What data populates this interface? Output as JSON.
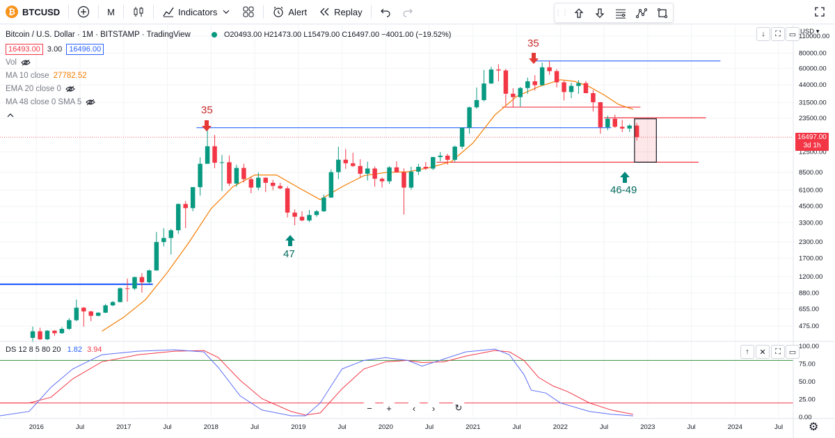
{
  "toolbar": {
    "symbol": "BTCUSD",
    "interval": "M",
    "indicators_label": "Indicators",
    "alert_label": "Alert",
    "replay_label": "Replay"
  },
  "legend": {
    "title": "Bitcoin / U.S. Dollar · 1M · BITSTAMP · TradingView",
    "ohlc": "O20493.00 H21473.00 L15479.00 C16497.00 −4001.00 (−19.52%)",
    "bid": "16493.00",
    "spread": "3.00",
    "ask": "16496.00",
    "vol_label": "Vol",
    "ma10_label": "MA 10 close",
    "ma10_value": "27782.52",
    "ema20_label": "EMA 20 close 0",
    "ma48_label": "MA 48 close 0 SMA 5",
    "indicator_label": "DS 12 8 5 80 20",
    "indicator_v1": "1.82",
    "indicator_v2": "3.94"
  },
  "price_axis": {
    "currency": "USD",
    "ticks": [
      "110000.00",
      "80000.00",
      "60000.00",
      "44000.00",
      "31500.00",
      "23500.00",
      "12500.00",
      "8500.00",
      "6100.00",
      "4500.00",
      "3300.00",
      "2300.00",
      "1700.00",
      "1200.00",
      "880.00",
      "655.00",
      "475.00"
    ],
    "current_price": "16497.00",
    "countdown": "3d 1h"
  },
  "osc_axis": {
    "ticks": [
      "100.00",
      "75.00",
      "50.00",
      "25.00",
      "0.00"
    ]
  },
  "time_axis": {
    "labels": [
      "Jul",
      "2016",
      "Jul",
      "2017",
      "Jul",
      "2018",
      "Jul",
      "2019",
      "Jul",
      "2020",
      "Jul",
      "2021",
      "Jul",
      "2022",
      "Jul",
      "2023",
      "Jul",
      "2024",
      "Jul"
    ]
  },
  "annotations": {
    "top1": "35",
    "top2": "35",
    "bottom1": "47",
    "bottom2": "46-49"
  },
  "colors": {
    "up": "#089981",
    "down": "#f23645",
    "ma": "#f57c00",
    "hline_blue": "#2962ff",
    "hline_red": "#f23645",
    "osc_blue": "#5b6df5",
    "osc_red": "#f23645",
    "osc_green": "#388e3c"
  },
  "chart_data": {
    "type": "candlestick",
    "title": "Bitcoin / U.S. Dollar · 1M · BITSTAMP · TradingView",
    "y_scale": "log",
    "ylim": [
      380,
      110000
    ],
    "x_range": [
      "2015-08",
      "2024-09"
    ],
    "candles": [
      {
        "t": "2015-12",
        "o": 380,
        "h": 470,
        "l": 350,
        "c": 430
      },
      {
        "t": "2016-01",
        "o": 430,
        "h": 460,
        "l": 365,
        "c": 370
      },
      {
        "t": "2016-02",
        "o": 370,
        "h": 440,
        "l": 365,
        "c": 435
      },
      {
        "t": "2016-03",
        "o": 435,
        "h": 440,
        "l": 395,
        "c": 415
      },
      {
        "t": "2016-04",
        "o": 415,
        "h": 465,
        "l": 410,
        "c": 450
      },
      {
        "t": "2016-05",
        "o": 450,
        "h": 550,
        "l": 440,
        "c": 530
      },
      {
        "t": "2016-06",
        "o": 530,
        "h": 780,
        "l": 520,
        "c": 670
      },
      {
        "t": "2016-07",
        "o": 670,
        "h": 680,
        "l": 470,
        "c": 625
      },
      {
        "t": "2016-08",
        "o": 625,
        "h": 630,
        "l": 520,
        "c": 575
      },
      {
        "t": "2016-09",
        "o": 575,
        "h": 615,
        "l": 570,
        "c": 610
      },
      {
        "t": "2016-10",
        "o": 610,
        "h": 720,
        "l": 605,
        "c": 700
      },
      {
        "t": "2016-11",
        "o": 700,
        "h": 760,
        "l": 690,
        "c": 745
      },
      {
        "t": "2016-12",
        "o": 745,
        "h": 980,
        "l": 740,
        "c": 965
      },
      {
        "t": "2017-01",
        "o": 965,
        "h": 1160,
        "l": 750,
        "c": 960
      },
      {
        "t": "2017-02",
        "o": 960,
        "h": 1200,
        "l": 930,
        "c": 1190
      },
      {
        "t": "2017-03",
        "o": 1190,
        "h": 1280,
        "l": 890,
        "c": 1080
      },
      {
        "t": "2017-04",
        "o": 1080,
        "h": 1370,
        "l": 1060,
        "c": 1350
      },
      {
        "t": "2017-05",
        "o": 1350,
        "h": 2780,
        "l": 1340,
        "c": 2300
      },
      {
        "t": "2017-06",
        "o": 2300,
        "h": 2980,
        "l": 2120,
        "c": 2480
      },
      {
        "t": "2017-07",
        "o": 2480,
        "h": 2950,
        "l": 1820,
        "c": 2870
      },
      {
        "t": "2017-08",
        "o": 2870,
        "h": 4750,
        "l": 2680,
        "c": 4700
      },
      {
        "t": "2017-09",
        "o": 4700,
        "h": 4980,
        "l": 2980,
        "c": 4350
      },
      {
        "t": "2017-10",
        "o": 4350,
        "h": 6450,
        "l": 4110,
        "c": 6450
      },
      {
        "t": "2017-11",
        "o": 6450,
        "h": 11300,
        "l": 5500,
        "c": 10000
      },
      {
        "t": "2017-12",
        "o": 10000,
        "h": 19700,
        "l": 10000,
        "c": 13900
      },
      {
        "t": "2018-01",
        "o": 13900,
        "h": 17200,
        "l": 9200,
        "c": 10200
      },
      {
        "t": "2018-02",
        "o": 10200,
        "h": 11800,
        "l": 6000,
        "c": 10300
      },
      {
        "t": "2018-03",
        "o": 10300,
        "h": 11700,
        "l": 6600,
        "c": 6900
      },
      {
        "t": "2018-04",
        "o": 6900,
        "h": 9800,
        "l": 6500,
        "c": 9250
      },
      {
        "t": "2018-05",
        "o": 9250,
        "h": 10000,
        "l": 7050,
        "c": 7500
      },
      {
        "t": "2018-06",
        "o": 7500,
        "h": 7800,
        "l": 5750,
        "c": 6400
      },
      {
        "t": "2018-07",
        "o": 6400,
        "h": 8500,
        "l": 6100,
        "c": 7700
      },
      {
        "t": "2018-08",
        "o": 7700,
        "h": 7750,
        "l": 5880,
        "c": 7000
      },
      {
        "t": "2018-09",
        "o": 7000,
        "h": 7400,
        "l": 6100,
        "c": 6600
      },
      {
        "t": "2018-10",
        "o": 6600,
        "h": 7000,
        "l": 6200,
        "c": 6300
      },
      {
        "t": "2018-11",
        "o": 6300,
        "h": 6550,
        "l": 3650,
        "c": 4000
      },
      {
        "t": "2018-12",
        "o": 4000,
        "h": 4250,
        "l": 3150,
        "c": 3700
      },
      {
        "t": "2019-01",
        "o": 3700,
        "h": 4100,
        "l": 3400,
        "c": 3450
      },
      {
        "t": "2019-02",
        "o": 3450,
        "h": 4200,
        "l": 3350,
        "c": 3820
      },
      {
        "t": "2019-03",
        "o": 3820,
        "h": 4200,
        "l": 3700,
        "c": 4100
      },
      {
        "t": "2019-04",
        "o": 4100,
        "h": 5600,
        "l": 4050,
        "c": 5300
      },
      {
        "t": "2019-05",
        "o": 5300,
        "h": 9000,
        "l": 5300,
        "c": 8550
      },
      {
        "t": "2019-06",
        "o": 8550,
        "h": 13800,
        "l": 7500,
        "c": 10800
      },
      {
        "t": "2019-07",
        "o": 10800,
        "h": 13200,
        "l": 9100,
        "c": 10100
      },
      {
        "t": "2019-08",
        "o": 10100,
        "h": 12300,
        "l": 9400,
        "c": 9600
      },
      {
        "t": "2019-09",
        "o": 9600,
        "h": 10900,
        "l": 7750,
        "c": 8300
      },
      {
        "t": "2019-10",
        "o": 8300,
        "h": 10400,
        "l": 7300,
        "c": 9150
      },
      {
        "t": "2019-11",
        "o": 9150,
        "h": 9500,
        "l": 6500,
        "c": 7550
      },
      {
        "t": "2019-12",
        "o": 7550,
        "h": 7750,
        "l": 6400,
        "c": 7200
      },
      {
        "t": "2020-01",
        "o": 7200,
        "h": 9550,
        "l": 6850,
        "c": 9350
      },
      {
        "t": "2020-02",
        "o": 9350,
        "h": 10500,
        "l": 8450,
        "c": 8550
      },
      {
        "t": "2020-03",
        "o": 8550,
        "h": 9180,
        "l": 3850,
        "c": 6400
      },
      {
        "t": "2020-04",
        "o": 6400,
        "h": 9450,
        "l": 6150,
        "c": 8630
      },
      {
        "t": "2020-05",
        "o": 8630,
        "h": 10000,
        "l": 8100,
        "c": 9450
      },
      {
        "t": "2020-06",
        "o": 9450,
        "h": 10350,
        "l": 8900,
        "c": 9140
      },
      {
        "t": "2020-07",
        "o": 9140,
        "h": 11400,
        "l": 8900,
        "c": 11350
      },
      {
        "t": "2020-08",
        "o": 11350,
        "h": 12450,
        "l": 10500,
        "c": 11650
      },
      {
        "t": "2020-09",
        "o": 11650,
        "h": 12050,
        "l": 9850,
        "c": 10780
      },
      {
        "t": "2020-10",
        "o": 10780,
        "h": 14100,
        "l": 10400,
        "c": 13800
      },
      {
        "t": "2020-11",
        "o": 13800,
        "h": 19800,
        "l": 13200,
        "c": 19700
      },
      {
        "t": "2020-12",
        "o": 19700,
        "h": 29300,
        "l": 17600,
        "c": 28900
      },
      {
        "t": "2021-01",
        "o": 28900,
        "h": 41950,
        "l": 28100,
        "c": 33100
      },
      {
        "t": "2021-02",
        "o": 33100,
        "h": 58300,
        "l": 32300,
        "c": 45200
      },
      {
        "t": "2021-03",
        "o": 45200,
        "h": 61800,
        "l": 44900,
        "c": 58800
      },
      {
        "t": "2021-04",
        "o": 58800,
        "h": 64900,
        "l": 47000,
        "c": 57700
      },
      {
        "t": "2021-05",
        "o": 57700,
        "h": 59500,
        "l": 30000,
        "c": 37300
      },
      {
        "t": "2021-06",
        "o": 37300,
        "h": 41300,
        "l": 28800,
        "c": 35000
      },
      {
        "t": "2021-07",
        "o": 35000,
        "h": 42300,
        "l": 29300,
        "c": 41500
      },
      {
        "t": "2021-08",
        "o": 41500,
        "h": 50500,
        "l": 37300,
        "c": 47100
      },
      {
        "t": "2021-09",
        "o": 47100,
        "h": 52900,
        "l": 39600,
        "c": 43800
      },
      {
        "t": "2021-10",
        "o": 43800,
        "h": 66900,
        "l": 43300,
        "c": 61300
      },
      {
        "t": "2021-11",
        "o": 61300,
        "h": 69000,
        "l": 53300,
        "c": 57000
      },
      {
        "t": "2021-12",
        "o": 57000,
        "h": 59100,
        "l": 42000,
        "c": 46200
      },
      {
        "t": "2022-01",
        "o": 46200,
        "h": 47900,
        "l": 32900,
        "c": 38500
      },
      {
        "t": "2022-02",
        "o": 38500,
        "h": 45800,
        "l": 34300,
        "c": 43200
      },
      {
        "t": "2022-03",
        "o": 43200,
        "h": 48200,
        "l": 37200,
        "c": 45500
      },
      {
        "t": "2022-04",
        "o": 45500,
        "h": 47400,
        "l": 37600,
        "c": 37700
      },
      {
        "t": "2022-05",
        "o": 37700,
        "h": 40000,
        "l": 26700,
        "c": 31800
      },
      {
        "t": "2022-06",
        "o": 31800,
        "h": 31900,
        "l": 17600,
        "c": 19900
      },
      {
        "t": "2022-07",
        "o": 19900,
        "h": 24700,
        "l": 18800,
        "c": 23300
      },
      {
        "t": "2022-08",
        "o": 23300,
        "h": 25200,
        "l": 19600,
        "c": 20050
      },
      {
        "t": "2022-09",
        "o": 20050,
        "h": 22800,
        "l": 18150,
        "c": 19400
      },
      {
        "t": "2022-10",
        "o": 19400,
        "h": 21000,
        "l": 18200,
        "c": 20500
      },
      {
        "t": "2022-11",
        "o": 20493,
        "h": 21473,
        "l": 15479,
        "c": 16497
      }
    ],
    "ma": [
      [
        "2016-10",
        430
      ],
      [
        "2017-01",
        560
      ],
      [
        "2017-04",
        780
      ],
      [
        "2017-07",
        1300
      ],
      [
        "2017-10",
        2300
      ],
      [
        "2018-01",
        4300
      ],
      [
        "2018-04",
        6500
      ],
      [
        "2018-07",
        8100
      ],
      [
        "2018-10",
        8100
      ],
      [
        "2019-01",
        6400
      ],
      [
        "2019-04",
        5100
      ],
      [
        "2019-07",
        6500
      ],
      [
        "2019-10",
        8000
      ],
      [
        "2020-01",
        8500
      ],
      [
        "2020-04",
        8600
      ],
      [
        "2020-07",
        9300
      ],
      [
        "2020-10",
        10400
      ],
      [
        "2021-01",
        14800
      ],
      [
        "2021-04",
        25000
      ],
      [
        "2021-07",
        35500
      ],
      [
        "2021-10",
        42500
      ],
      [
        "2022-01",
        48500
      ],
      [
        "2022-03",
        47000
      ],
      [
        "2022-05",
        42500
      ],
      [
        "2022-07",
        36500
      ],
      [
        "2022-09",
        30500
      ],
      [
        "2022-11",
        27782.52
      ]
    ],
    "hlines": [
      {
        "price": 1040,
        "from": "2015-08",
        "to": "2017-05",
        "color": "blue"
      },
      {
        "price": 19700,
        "from": "2017-11",
        "to": "2022-08",
        "color": "blue"
      },
      {
        "price": 69000,
        "from": "2021-09",
        "to": "2023-11",
        "color": "blue"
      },
      {
        "price": 29000,
        "from": "2021-05",
        "to": "2022-12",
        "color": "red"
      },
      {
        "price": 23700,
        "from": "2022-07",
        "to": "2023-09",
        "color": "red"
      },
      {
        "price": 10300,
        "from": "2020-08",
        "to": "2023-08",
        "color": "red"
      }
    ],
    "projection_box": {
      "from": "2022-11",
      "to": "2023-02",
      "price_high": 23300,
      "price_low": 10300
    },
    "oscillator": {
      "name": "DS 12 8 5 80 20",
      "ylim": [
        0,
        100
      ],
      "levels": [
        80,
        20
      ],
      "fast": [
        [
          "2015-08",
          2
        ],
        [
          "2015-12",
          8
        ],
        [
          "2016-03",
          42
        ],
        [
          "2016-06",
          68
        ],
        [
          "2016-10",
          88
        ],
        [
          "2017-03",
          93
        ],
        [
          "2017-08",
          95
        ],
        [
          "2017-12",
          92
        ],
        [
          "2018-02",
          70
        ],
        [
          "2018-05",
          30
        ],
        [
          "2018-08",
          10
        ],
        [
          "2018-12",
          2
        ],
        [
          "2019-02",
          2
        ],
        [
          "2019-04",
          20
        ],
        [
          "2019-07",
          68
        ],
        [
          "2019-10",
          80
        ],
        [
          "2020-01",
          84
        ],
        [
          "2020-04",
          80
        ],
        [
          "2020-06",
          72
        ],
        [
          "2020-09",
          82
        ],
        [
          "2020-12",
          92
        ],
        [
          "2021-04",
          96
        ],
        [
          "2021-06",
          88
        ],
        [
          "2021-08",
          60
        ],
        [
          "2021-09",
          38
        ],
        [
          "2021-11",
          34
        ],
        [
          "2022-01",
          20
        ],
        [
          "2022-05",
          8
        ],
        [
          "2022-08",
          4
        ],
        [
          "2022-11",
          1.82
        ]
      ],
      "slow": [
        [
          "2015-08",
          20
        ],
        [
          "2015-12",
          20
        ],
        [
          "2016-03",
          28
        ],
        [
          "2016-06",
          54
        ],
        [
          "2016-10",
          78
        ],
        [
          "2017-03",
          88
        ],
        [
          "2017-08",
          93
        ],
        [
          "2017-12",
          94
        ],
        [
          "2018-02",
          84
        ],
        [
          "2018-05",
          52
        ],
        [
          "2018-08",
          26
        ],
        [
          "2018-12",
          8
        ],
        [
          "2019-02",
          3
        ],
        [
          "2019-04",
          6
        ],
        [
          "2019-07",
          40
        ],
        [
          "2019-10",
          68
        ],
        [
          "2020-01",
          78
        ],
        [
          "2020-04",
          80
        ],
        [
          "2020-06",
          77
        ],
        [
          "2020-09",
          78
        ],
        [
          "2020-12",
          86
        ],
        [
          "2021-04",
          94
        ],
        [
          "2021-06",
          92
        ],
        [
          "2021-08",
          80
        ],
        [
          "2021-10",
          56
        ],
        [
          "2021-12",
          44
        ],
        [
          "2022-02",
          36
        ],
        [
          "2022-05",
          20
        ],
        [
          "2022-08",
          10
        ],
        [
          "2022-11",
          3.94
        ]
      ]
    }
  }
}
